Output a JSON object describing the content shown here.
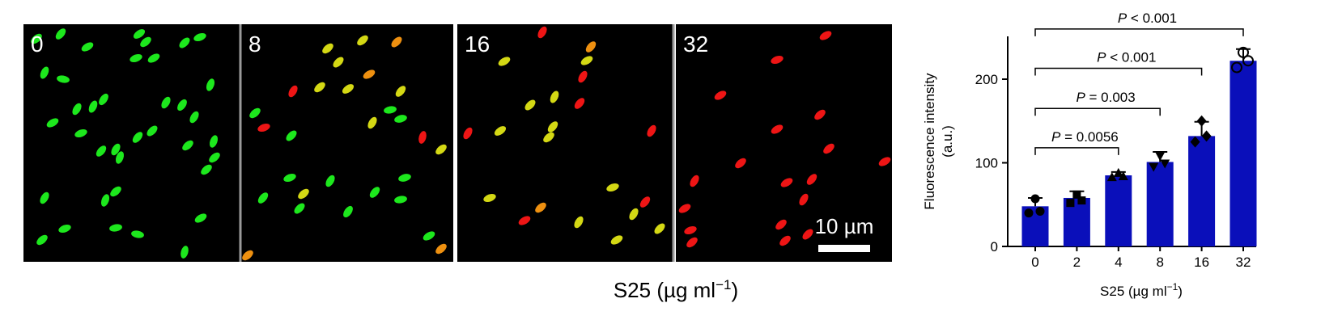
{
  "panels": [
    {
      "label": "0",
      "cells": [
        [
          45,
          48,
          -40,
          "g"
        ],
        [
          75,
          42,
          -50,
          "g"
        ],
        [
          108,
          58,
          -30,
          "g"
        ],
        [
          172,
          42,
          -35,
          "g"
        ],
        [
          180,
          52,
          -40,
          "g"
        ],
        [
          228,
          53,
          -45,
          "g"
        ],
        [
          247,
          46,
          -20,
          "g"
        ],
        [
          55,
          90,
          -65,
          "g"
        ],
        [
          78,
          98,
          10,
          "g"
        ],
        [
          168,
          72,
          -20,
          "g"
        ],
        [
          190,
          72,
          -30,
          "g"
        ],
        [
          260,
          105,
          -70,
          "g"
        ],
        [
          95,
          135,
          -60,
          "g"
        ],
        [
          115,
          132,
          -65,
          "g"
        ],
        [
          128,
          123,
          -55,
          "g"
        ],
        [
          205,
          127,
          -60,
          "g"
        ],
        [
          225,
          130,
          -55,
          "g"
        ],
        [
          240,
          145,
          -60,
          "g"
        ],
        [
          65,
          152,
          -30,
          "g"
        ],
        [
          100,
          165,
          -20,
          "g"
        ],
        [
          125,
          187,
          -50,
          "g"
        ],
        [
          143,
          185,
          -60,
          "g"
        ],
        [
          148,
          195,
          -70,
          "g"
        ],
        [
          170,
          170,
          -50,
          "g"
        ],
        [
          188,
          162,
          -45,
          "g"
        ],
        [
          232,
          180,
          -40,
          "g"
        ],
        [
          264,
          175,
          -70,
          "g"
        ],
        [
          265,
          195,
          -40,
          "g"
        ],
        [
          255,
          210,
          -40,
          "g"
        ],
        [
          55,
          245,
          -60,
          "g"
        ],
        [
          130,
          248,
          -70,
          "g"
        ],
        [
          143,
          237,
          -40,
          "g"
        ],
        [
          248,
          270,
          -30,
          "g"
        ],
        [
          80,
          283,
          -20,
          "g"
        ],
        [
          143,
          282,
          -10,
          "g"
        ],
        [
          170,
          290,
          10,
          "g"
        ],
        [
          52,
          297,
          -40,
          "g"
        ],
        [
          228,
          312,
          -75,
          "g"
        ]
      ]
    },
    {
      "label": "8",
      "cells": [
        [
          405,
          60,
          -40,
          "y"
        ],
        [
          448,
          50,
          -40,
          "y"
        ],
        [
          490,
          52,
          -45,
          "o"
        ],
        [
          418,
          77,
          -45,
          "y"
        ],
        [
          456,
          92,
          -30,
          "o"
        ],
        [
          362,
          113,
          -60,
          "r"
        ],
        [
          395,
          108,
          -40,
          "y"
        ],
        [
          430,
          110,
          -35,
          "y"
        ],
        [
          495,
          113,
          -50,
          "y"
        ],
        [
          482,
          136,
          -10,
          "g"
        ],
        [
          495,
          147,
          -15,
          "g"
        ],
        [
          460,
          152,
          -60,
          "y"
        ],
        [
          315,
          140,
          -40,
          "g"
        ],
        [
          326,
          158,
          -20,
          "r"
        ],
        [
          360,
          168,
          -45,
          "g"
        ],
        [
          522,
          170,
          -75,
          "r"
        ],
        [
          545,
          185,
          -40,
          "y"
        ],
        [
          358,
          220,
          -20,
          "g"
        ],
        [
          408,
          224,
          -60,
          "g"
        ],
        [
          375,
          240,
          -40,
          "y"
        ],
        [
          500,
          220,
          -15,
          "g"
        ],
        [
          325,
          245,
          -50,
          "g"
        ],
        [
          463,
          238,
          -50,
          "g"
        ],
        [
          370,
          258,
          -45,
          "g"
        ],
        [
          495,
          247,
          -10,
          "g"
        ],
        [
          430,
          262,
          -55,
          "g"
        ],
        [
          530,
          292,
          -30,
          "g"
        ],
        [
          545,
          308,
          -40,
          "o"
        ],
        [
          306,
          316,
          -40,
          "o"
        ]
      ]
    },
    {
      "label": "16",
      "cells": [
        [
          670,
          40,
          -60,
          "r"
        ],
        [
          730,
          58,
          -50,
          "o"
        ],
        [
          725,
          75,
          -30,
          "y"
        ],
        [
          623,
          76,
          -30,
          "y"
        ],
        [
          720,
          95,
          -60,
          "r"
        ],
        [
          685,
          120,
          -65,
          "y"
        ],
        [
          716,
          128,
          -50,
          "r"
        ],
        [
          655,
          130,
          -45,
          "y"
        ],
        [
          578,
          165,
          -60,
          "r"
        ],
        [
          618,
          162,
          -35,
          "y"
        ],
        [
          683,
          157,
          -50,
          "y"
        ],
        [
          678,
          170,
          -40,
          "y"
        ],
        [
          805,
          162,
          -60,
          "r"
        ],
        [
          548,
          220,
          -45,
          "y"
        ],
        [
          757,
          232,
          -20,
          "y"
        ],
        [
          605,
          245,
          -20,
          "y"
        ],
        [
          668,
          257,
          -40,
          "o"
        ],
        [
          797,
          250,
          -50,
          "r"
        ],
        [
          783,
          265,
          -60,
          "y"
        ],
        [
          648,
          273,
          -30,
          "r"
        ],
        [
          715,
          275,
          -60,
          "y"
        ],
        [
          815,
          283,
          -45,
          "y"
        ],
        [
          762,
          297,
          -30,
          "y"
        ]
      ]
    },
    {
      "label": "32",
      "cells": [
        [
          1020,
          44,
          -30,
          "r"
        ],
        [
          960,
          74,
          -20,
          "r"
        ],
        [
          890,
          118,
          -30,
          "r"
        ],
        [
          1013,
          142,
          -40,
          "r"
        ],
        [
          960,
          160,
          -30,
          "r"
        ],
        [
          1024,
          184,
          -40,
          "r"
        ],
        [
          915,
          202,
          -40,
          "r"
        ],
        [
          1093,
          200,
          -30,
          "r"
        ],
        [
          1003,
          222,
          -50,
          "r"
        ],
        [
          858,
          224,
          -60,
          "r"
        ],
        [
          972,
          226,
          -30,
          "r"
        ],
        [
          993,
          247,
          -60,
          "r"
        ],
        [
          846,
          258,
          -30,
          "r"
        ],
        [
          965,
          278,
          -40,
          "r"
        ],
        [
          853,
          285,
          -20,
          "r"
        ],
        [
          998,
          290,
          -45,
          "r"
        ],
        [
          970,
          298,
          -40,
          "r"
        ],
        [
          855,
          300,
          -40,
          "r"
        ]
      ]
    }
  ],
  "scale_bar": {
    "label": "10 µm"
  },
  "micrograph_axis": {
    "label": "S25 (µg ml",
    "sup": "−1",
    "close": ")"
  },
  "cell_colors": {
    "g": "#1de81d",
    "y": "#d4d814",
    "o": "#ee9010",
    "r": "#ee1515"
  },
  "bar_color": "#0a0fba",
  "chart_data": {
    "type": "bar",
    "categories": [
      "0",
      "2",
      "4",
      "8",
      "16",
      "32"
    ],
    "values": [
      48,
      58,
      85,
      101,
      132,
      222
    ],
    "error": [
      10,
      8,
      4,
      12,
      17,
      14
    ],
    "points": [
      [
        40,
        42,
        57
      ],
      [
        52,
        55,
        62
      ],
      [
        83,
        84,
        88
      ],
      [
        95,
        99,
        108
      ],
      [
        125,
        132,
        150
      ],
      [
        214,
        222,
        232
      ]
    ],
    "markers": [
      "circle",
      "square",
      "triangle-up",
      "triangle-down",
      "diamond",
      "open-circle"
    ],
    "ylabel": "Fluorescence intensity",
    "ylabel2": "(a.u.)",
    "xlabel": "S25 (µg ml",
    "xlabel_sup": "−1",
    "xlabel_close": ")",
    "ylim": [
      0,
      250
    ],
    "yticks": [
      0,
      100,
      200
    ],
    "significance": [
      {
        "from": "0",
        "to": "32",
        "text": "P < 0.001",
        "level": 260
      },
      {
        "from": "0",
        "to": "16",
        "text": "P < 0.001",
        "level": 213
      },
      {
        "from": "0",
        "to": "8",
        "text": "P = 0.003",
        "level": 165
      },
      {
        "from": "0",
        "to": "4",
        "text": "P = 0.0056",
        "level": 118
      }
    ]
  }
}
